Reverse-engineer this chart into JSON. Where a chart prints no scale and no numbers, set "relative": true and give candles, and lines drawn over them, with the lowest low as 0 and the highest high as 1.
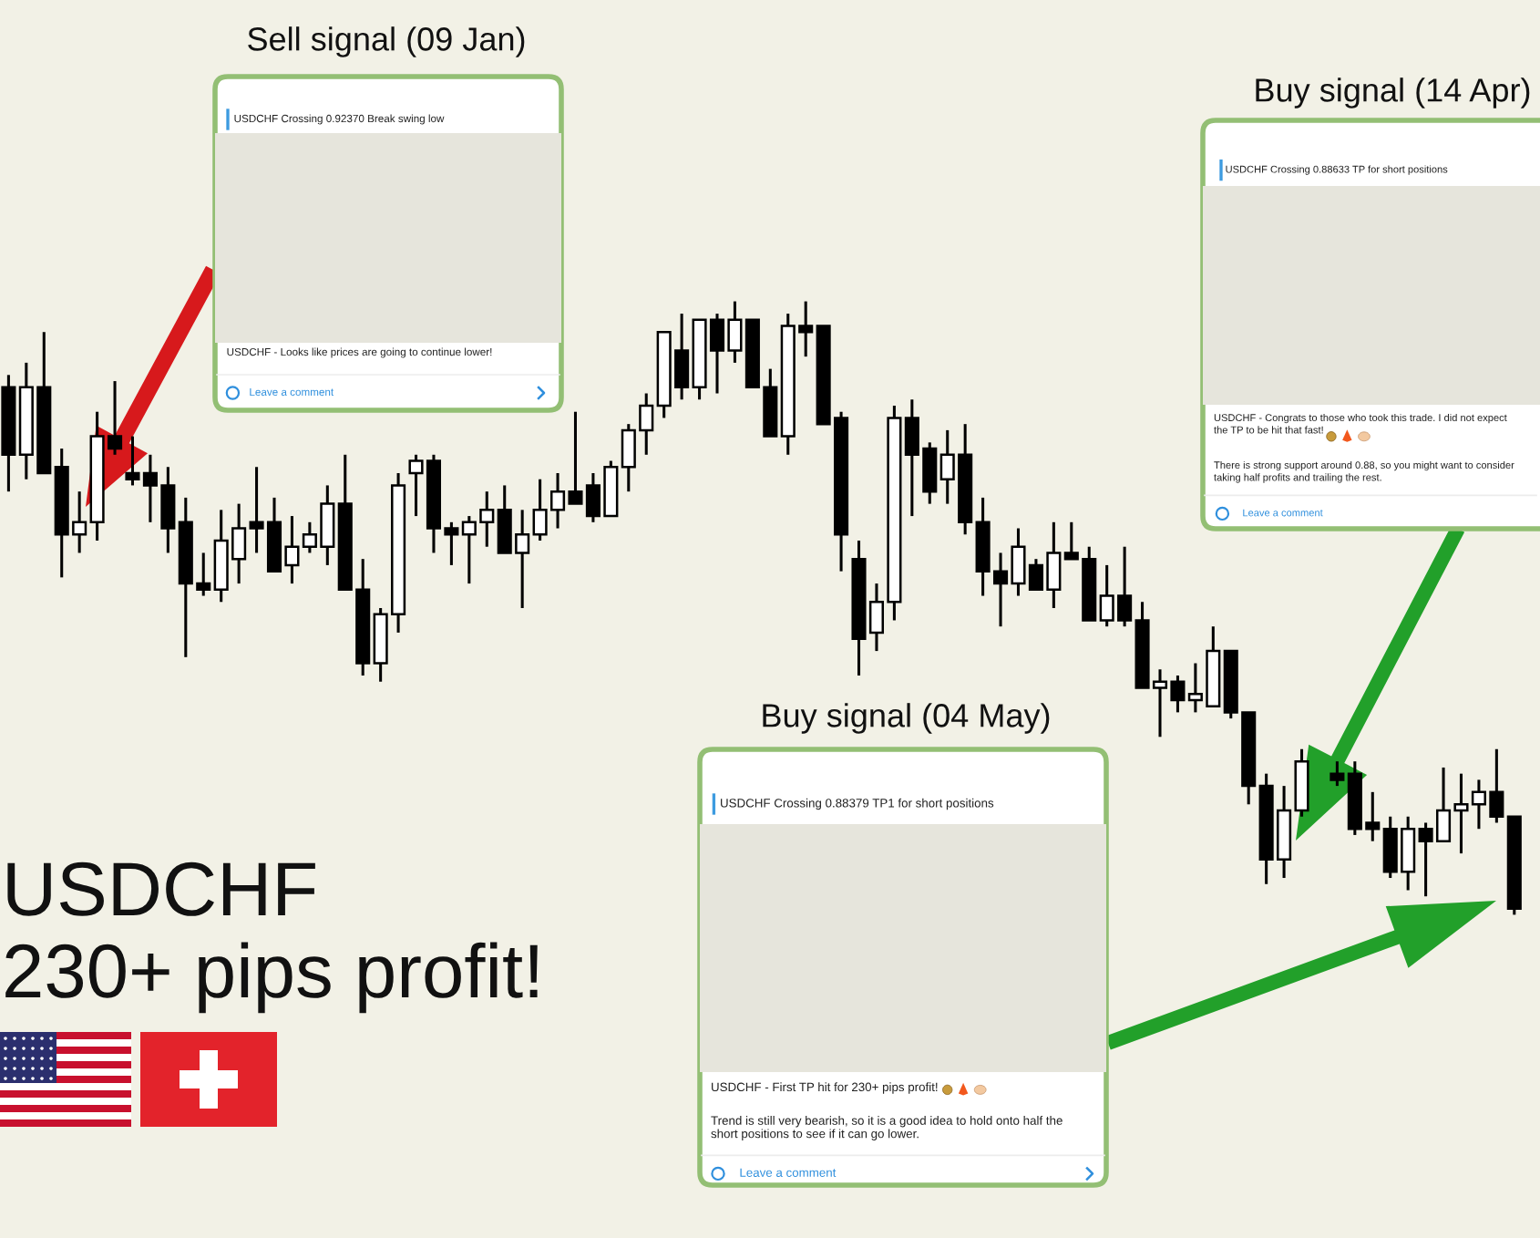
{
  "chart_data": [
    {
      "type": "candlestick",
      "title": "USDCHF",
      "subtitle": "230+ pips profit!",
      "relative": true,
      "categories": [
        null,
        null,
        null,
        null,
        null,
        null,
        null,
        null,
        null,
        null,
        null,
        null,
        null,
        null,
        null,
        null,
        null,
        null,
        null,
        null,
        null,
        null,
        null,
        null,
        null,
        null,
        null,
        null,
        null,
        null,
        null,
        null,
        null,
        null,
        null,
        null,
        null,
        null,
        null,
        null,
        null,
        null,
        null,
        null,
        null,
        null,
        null,
        null,
        null,
        null,
        null,
        null,
        null,
        null,
        null,
        null,
        null,
        null,
        null,
        null,
        null,
        null,
        null,
        null,
        null,
        null,
        null,
        null,
        null,
        null,
        null,
        null,
        null,
        null,
        null,
        null,
        null,
        null,
        null,
        null,
        null,
        null,
        null,
        null,
        null,
        null
      ],
      "ohlc": [
        [
          0.86,
          0.88,
          0.69,
          0.75
        ],
        [
          0.75,
          0.9,
          0.71,
          0.86
        ],
        [
          0.86,
          0.95,
          0.72,
          0.72
        ],
        [
          0.73,
          0.76,
          0.55,
          0.62
        ],
        [
          0.62,
          0.69,
          0.59,
          0.64
        ],
        [
          0.64,
          0.82,
          0.61,
          0.78
        ],
        [
          0.78,
          0.87,
          0.75,
          0.76
        ],
        [
          0.72,
          0.78,
          0.7,
          0.71
        ],
        [
          0.72,
          0.75,
          0.64,
          0.7
        ],
        [
          0.7,
          0.73,
          0.59,
          0.63
        ],
        [
          0.64,
          0.68,
          0.42,
          0.54
        ],
        [
          0.54,
          0.59,
          0.52,
          0.53
        ],
        [
          0.53,
          0.66,
          0.51,
          0.61
        ],
        [
          0.58,
          0.67,
          0.54,
          0.63
        ],
        [
          0.64,
          0.73,
          0.59,
          0.63
        ],
        [
          0.64,
          0.68,
          0.56,
          0.56
        ],
        [
          0.57,
          0.65,
          0.54,
          0.6
        ],
        [
          0.6,
          0.64,
          0.59,
          0.62
        ],
        [
          0.6,
          0.7,
          0.57,
          0.67
        ],
        [
          0.67,
          0.75,
          0.53,
          0.53
        ],
        [
          0.53,
          0.58,
          0.39,
          0.41
        ],
        [
          0.41,
          0.5,
          0.38,
          0.49
        ],
        [
          0.49,
          0.72,
          0.46,
          0.7
        ],
        [
          0.72,
          0.75,
          0.65,
          0.74
        ],
        [
          0.74,
          0.75,
          0.59,
          0.63
        ],
        [
          0.63,
          0.64,
          0.57,
          0.62
        ],
        [
          0.62,
          0.65,
          0.54,
          0.64
        ],
        [
          0.64,
          0.69,
          0.6,
          0.66
        ],
        [
          0.66,
          0.7,
          0.59,
          0.59
        ],
        [
          0.59,
          0.66,
          0.5,
          0.62
        ],
        [
          0.62,
          0.71,
          0.61,
          0.66
        ],
        [
          0.66,
          0.72,
          0.63,
          0.69
        ],
        [
          0.69,
          0.82,
          0.67,
          0.67
        ],
        [
          0.7,
          0.72,
          0.64,
          0.65
        ],
        [
          0.65,
          0.74,
          0.65,
          0.73
        ],
        [
          0.73,
          0.8,
          0.69,
          0.79
        ],
        [
          0.79,
          0.85,
          0.75,
          0.83
        ],
        [
          0.83,
          0.95,
          0.81,
          0.95
        ],
        [
          0.92,
          0.98,
          0.84,
          0.86
        ],
        [
          0.86,
          0.97,
          0.84,
          0.97
        ],
        [
          0.97,
          0.98,
          0.85,
          0.92
        ],
        [
          0.92,
          1.0,
          0.9,
          0.97
        ],
        [
          0.97,
          0.97,
          0.86,
          0.86
        ],
        [
          0.86,
          0.89,
          0.78,
          0.78
        ],
        [
          0.78,
          0.98,
          0.75,
          0.96
        ],
        [
          0.96,
          1.0,
          0.91,
          0.95
        ],
        [
          0.96,
          0.96,
          0.8,
          0.8
        ],
        [
          0.81,
          0.82,
          0.56,
          0.62
        ],
        [
          0.58,
          0.61,
          0.39,
          0.45
        ],
        [
          0.46,
          0.54,
          0.43,
          0.51
        ],
        [
          0.51,
          0.83,
          0.48,
          0.81
        ],
        [
          0.81,
          0.84,
          0.65,
          0.75
        ],
        [
          0.76,
          0.77,
          0.67,
          0.69
        ],
        [
          0.71,
          0.79,
          0.67,
          0.75
        ],
        [
          0.75,
          0.8,
          0.62,
          0.64
        ],
        [
          0.64,
          0.68,
          0.52,
          0.56
        ],
        [
          0.56,
          0.59,
          0.47,
          0.54
        ],
        [
          0.54,
          0.63,
          0.52,
          0.6
        ],
        [
          0.57,
          0.58,
          0.53,
          0.53
        ],
        [
          0.53,
          0.64,
          0.5,
          0.59
        ],
        [
          0.59,
          0.64,
          0.58,
          0.58
        ],
        [
          0.58,
          0.6,
          0.48,
          0.48
        ],
        [
          0.48,
          0.57,
          0.47,
          0.52
        ],
        [
          0.52,
          0.6,
          0.47,
          0.48
        ],
        [
          0.48,
          0.51,
          0.37,
          0.37
        ],
        [
          0.37,
          0.4,
          0.29,
          0.38
        ],
        [
          0.38,
          0.39,
          0.33,
          0.35
        ],
        [
          0.35,
          0.41,
          0.33,
          0.36
        ],
        [
          0.34,
          0.47,
          0.34,
          0.43
        ],
        [
          0.43,
          0.43,
          0.32,
          0.33
        ],
        [
          0.33,
          0.33,
          0.18,
          0.21
        ],
        [
          0.21,
          0.23,
          0.05,
          0.09
        ],
        [
          0.09,
          0.21,
          0.06,
          0.17
        ],
        [
          0.17,
          0.27,
          0.16,
          0.25
        ],
        null,
        [
          0.23,
          0.25,
          0.21,
          0.22
        ],
        [
          0.23,
          0.25,
          0.13,
          0.14
        ],
        [
          0.15,
          0.2,
          0.12,
          0.14
        ],
        [
          0.14,
          0.16,
          0.06,
          0.07
        ],
        [
          0.07,
          0.16,
          0.04,
          0.14
        ],
        [
          0.14,
          0.15,
          0.03,
          0.12
        ],
        [
          0.12,
          0.24,
          0.12,
          0.17
        ],
        [
          0.17,
          0.23,
          0.1,
          0.18
        ],
        [
          0.18,
          0.22,
          0.14,
          0.2
        ],
        [
          0.2,
          0.27,
          0.15,
          0.16
        ],
        [
          0.16,
          0.16,
          0.0,
          0.01
        ]
      ]
    },
    {
      "type": "other",
      "title": "Sell signal (09 Jan)",
      "annotations": [
        "USDCHF Crossing 0.92370 Break swing low",
        "USDCHF - Looks like prices are going to continue lower!",
        "Leave a comment"
      ]
    },
    {
      "type": "other",
      "title": "Buy signal (14 Apr)",
      "annotations": [
        "USDCHF Crossing 0.88633 TP for short positions",
        "USDCHF - Congrats to those who took this trade. I did not expect\nthe TP to be hit that fast!",
        "There is strong support around 0.88, so you might want to consider\ntaking half profits and trailing the rest.",
        "Leave a comment"
      ]
    },
    {
      "type": "other",
      "title": "Buy signal (04 May)",
      "annotations": [
        "USDCHF Crossing 0.88379 TP1 for short positions",
        "USDCHF - First TP hit for 230+ pips profit!",
        "Trend is still very bearish, so it is a good idea to hold onto half the\nshort positions to see if it can go lower.",
        "Leave a comment"
      ]
    }
  ]
}
